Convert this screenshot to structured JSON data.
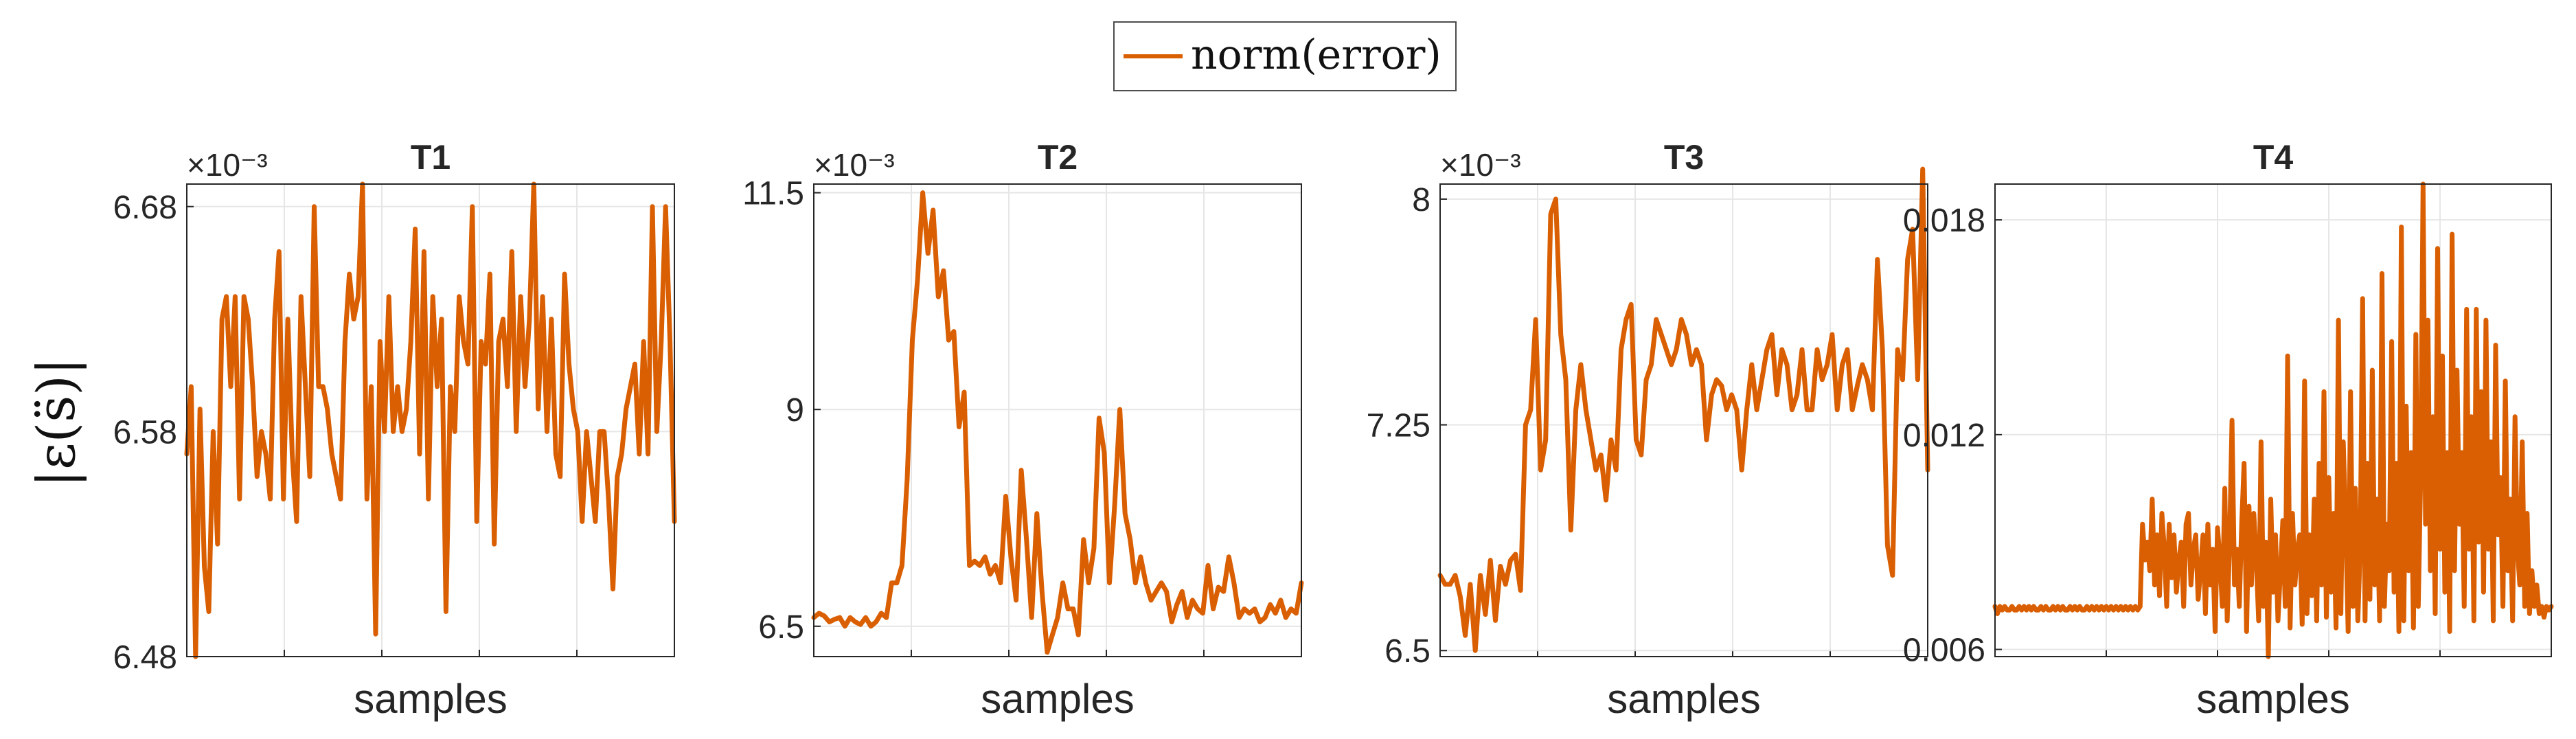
{
  "legend": {
    "label": "norm(error)",
    "placement": "top-center",
    "color": "#D95F02"
  },
  "figure_ylabel": "|ε(s̈)|",
  "chart_data": [
    {
      "type": "line",
      "title": "T1",
      "xlabel": "samples",
      "ylabel": "|ε(s̈)|",
      "exponent_label": "×10⁻³",
      "ylim": [
        6.48,
        6.69
      ],
      "yticks": [
        6.48,
        6.58,
        6.68
      ],
      "ytick_labels": [
        "6.48",
        "6.58",
        "6.68"
      ],
      "grid": true,
      "series": [
        {
          "name": "norm(error)",
          "color": "#D95F02",
          "values": [
            6.57,
            6.6,
            6.48,
            6.59,
            6.52,
            6.5,
            6.58,
            6.53,
            6.63,
            6.64,
            6.6,
            6.64,
            6.55,
            6.64,
            6.63,
            6.6,
            6.56,
            6.58,
            6.57,
            6.55,
            6.63,
            6.66,
            6.55,
            6.63,
            6.57,
            6.54,
            6.64,
            6.6,
            6.56,
            6.68,
            6.6,
            6.6,
            6.59,
            6.57,
            6.56,
            6.55,
            6.62,
            6.65,
            6.63,
            6.64,
            6.69,
            6.55,
            6.6,
            6.49,
            6.62,
            6.58,
            6.64,
            6.58,
            6.6,
            6.58,
            6.59,
            6.62,
            6.67,
            6.57,
            6.66,
            6.55,
            6.64,
            6.6,
            6.63,
            6.5,
            6.6,
            6.58,
            6.64,
            6.62,
            6.61,
            6.68,
            6.54,
            6.62,
            6.61,
            6.65,
            6.53,
            6.62,
            6.63,
            6.6,
            6.66,
            6.58,
            6.64,
            6.6,
            6.63,
            6.69,
            6.59,
            6.64,
            6.58,
            6.63,
            6.57,
            6.56,
            6.65,
            6.61,
            6.59,
            6.58,
            6.54,
            6.58,
            6.56,
            6.54,
            6.58,
            6.58,
            6.55,
            6.51,
            6.56,
            6.57,
            6.59,
            6.6,
            6.61,
            6.57,
            6.62,
            6.57,
            6.68,
            6.58,
            6.62,
            6.68,
            6.62,
            6.54
          ]
        }
      ]
    },
    {
      "type": "line",
      "title": "T2",
      "xlabel": "samples",
      "exponent_label": "×10⁻³",
      "ylim": [
        6.15,
        11.6
      ],
      "yticks": [
        6.5,
        9,
        11.5
      ],
      "ytick_labels": [
        "6.5",
        "9",
        "11.5"
      ],
      "grid": true,
      "series": [
        {
          "name": "norm(error)",
          "color": "#D95F02",
          "values": [
            6.6,
            6.65,
            6.62,
            6.55,
            6.58,
            6.6,
            6.5,
            6.6,
            6.55,
            6.52,
            6.6,
            6.5,
            6.55,
            6.65,
            6.6,
            7.0,
            7.0,
            7.2,
            8.2,
            9.8,
            10.5,
            11.5,
            10.8,
            11.3,
            10.3,
            10.6,
            9.8,
            9.9,
            8.8,
            9.2,
            7.2,
            7.25,
            7.2,
            7.3,
            7.1,
            7.2,
            7.0,
            8.0,
            7.3,
            6.8,
            8.3,
            7.5,
            6.6,
            7.8,
            6.9,
            6.2,
            6.4,
            6.6,
            7.0,
            6.7,
            6.7,
            6.4,
            7.5,
            7.0,
            7.4,
            8.9,
            8.5,
            7.0,
            7.9,
            9.0,
            7.8,
            7.5,
            7.0,
            7.3,
            7.0,
            6.8,
            6.9,
            7.0,
            6.9,
            6.55,
            6.75,
            6.9,
            6.6,
            6.8,
            6.7,
            6.65,
            7.2,
            6.7,
            6.95,
            6.9,
            7.3,
            7.0,
            6.6,
            6.7,
            6.65,
            6.7,
            6.55,
            6.6,
            6.75,
            6.65,
            6.8,
            6.6,
            6.7,
            6.65,
            7.0
          ]
        }
      ]
    },
    {
      "type": "line",
      "title": "T3",
      "xlabel": "samples",
      "exponent_label": "×10⁻³",
      "ylim": [
        6.48,
        8.05
      ],
      "yticks": [
        6.5,
        7.25,
        8
      ],
      "ytick_labels": [
        "6.5",
        "7.25",
        "8"
      ],
      "grid": true,
      "series": [
        {
          "name": "norm(error)",
          "color": "#D95F02",
          "values": [
            6.75,
            6.72,
            6.72,
            6.75,
            6.68,
            6.55,
            6.72,
            6.5,
            6.75,
            6.62,
            6.8,
            6.6,
            6.78,
            6.72,
            6.8,
            6.82,
            6.7,
            7.25,
            7.3,
            7.6,
            7.1,
            7.2,
            7.95,
            8.0,
            7.55,
            7.4,
            6.9,
            7.3,
            7.45,
            7.3,
            7.2,
            7.1,
            7.15,
            7.0,
            7.2,
            7.1,
            7.5,
            7.6,
            7.65,
            7.2,
            7.15,
            7.4,
            7.45,
            7.6,
            7.55,
            7.5,
            7.45,
            7.5,
            7.6,
            7.55,
            7.45,
            7.5,
            7.45,
            7.2,
            7.35,
            7.4,
            7.38,
            7.3,
            7.35,
            7.3,
            7.1,
            7.3,
            7.45,
            7.3,
            7.4,
            7.5,
            7.55,
            7.35,
            7.5,
            7.45,
            7.3,
            7.35,
            7.5,
            7.3,
            7.3,
            7.5,
            7.4,
            7.45,
            7.55,
            7.3,
            7.45,
            7.5,
            7.3,
            7.38,
            7.45,
            7.4,
            7.3,
            7.8,
            7.5,
            6.85,
            6.75,
            7.5,
            7.4,
            7.8,
            7.9,
            7.4,
            8.1,
            7.1
          ]
        }
      ]
    },
    {
      "type": "line",
      "title": "T4",
      "xlabel": "samples",
      "ylim": [
        0.0058,
        0.019
      ],
      "yticks": [
        0.006,
        0.012,
        0.018
      ],
      "ytick_labels": [
        "0.006",
        "0.012",
        "0.018"
      ],
      "grid": true,
      "series": [
        {
          "name": "norm(error)",
          "color": "#D95F02",
          "values": [
            0.0072,
            0.007,
            0.0072,
            0.0071,
            0.0072,
            0.0071,
            0.0071,
            0.0072,
            0.0071,
            0.0071,
            0.0072,
            0.0071,
            0.0072,
            0.0071,
            0.0072,
            0.0071,
            0.0072,
            0.0071,
            0.0071,
            0.0072,
            0.0071,
            0.0072,
            0.0071,
            0.0071,
            0.0072,
            0.0071,
            0.0072,
            0.0071,
            0.0072,
            0.0071,
            0.0071,
            0.0072,
            0.0071,
            0.0072,
            0.0071,
            0.0072,
            0.0071,
            0.0071,
            0.0072,
            0.0071,
            0.0072,
            0.0071,
            0.0072,
            0.0071,
            0.0072,
            0.0071,
            0.0072,
            0.0071,
            0.0072,
            0.0071,
            0.0072,
            0.0071,
            0.0072,
            0.0071,
            0.0072,
            0.0071,
            0.0072,
            0.0071,
            0.0072,
            0.0071,
            0.0072,
            0.0095,
            0.0085,
            0.009,
            0.0082,
            0.0102,
            0.0078,
            0.0092,
            0.0075,
            0.0098,
            0.0088,
            0.0072,
            0.0095,
            0.008,
            0.0092,
            0.0076,
            0.0085,
            0.009,
            0.0072,
            0.0095,
            0.0098,
            0.0078,
            0.0088,
            0.0092,
            0.0074,
            0.0082,
            0.0092,
            0.007,
            0.0095,
            0.0078,
            0.0088,
            0.0065,
            0.0094,
            0.0085,
            0.0072,
            0.0105,
            0.0068,
            0.009,
            0.0124,
            0.0078,
            0.0088,
            0.0072,
            0.0095,
            0.0112,
            0.0065,
            0.01,
            0.0078,
            0.0098,
            0.0086,
            0.0068,
            0.0118,
            0.0072,
            0.009,
            0.0058,
            0.0102,
            0.0076,
            0.0092,
            0.0068,
            0.0082,
            0.0096,
            0.0072,
            0.0142,
            0.0066,
            0.0098,
            0.0078,
            0.0088,
            0.0092,
            0.0067,
            0.0135,
            0.007,
            0.0092,
            0.0075,
            0.0102,
            0.0068,
            0.0112,
            0.0078,
            0.0132,
            0.0069,
            0.0108,
            0.0076,
            0.0098,
            0.0066,
            0.0152,
            0.007,
            0.0118,
            0.0095,
            0.0065,
            0.0132,
            0.0072,
            0.0105,
            0.0068,
            0.0088,
            0.0158,
            0.0068,
            0.0112,
            0.0074,
            0.0138,
            0.0078,
            0.0102,
            0.0068,
            0.0165,
            0.0072,
            0.0095,
            0.0082,
            0.0146,
            0.0076,
            0.0112,
            0.0065,
            0.0178,
            0.0068,
            0.0128,
            0.0082,
            0.0115,
            0.0066,
            0.0148,
            0.0072,
            0.0108,
            0.019,
            0.0095,
            0.0152,
            0.0082,
            0.0125,
            0.007,
            0.0172,
            0.0088,
            0.0142,
            0.0076,
            0.0115,
            0.0065,
            0.0176,
            0.0082,
            0.0138,
            0.0095,
            0.0115,
            0.0072,
            0.0155,
            0.0088,
            0.0125,
            0.0068,
            0.0155,
            0.009,
            0.0132,
            0.0076,
            0.0152,
            0.0088,
            0.0118,
            0.0068,
            0.0145,
            0.0092,
            0.0108,
            0.0072,
            0.0135,
            0.0082,
            0.0102,
            0.0068,
            0.0125,
            0.0088,
            0.0078,
            0.0118,
            0.0072,
            0.0098,
            0.007,
            0.0082,
            0.0072,
            0.0078,
            0.007,
            0.0072,
            0.0069,
            0.0072,
            0.0071,
            0.0072
          ]
        }
      ]
    }
  ]
}
